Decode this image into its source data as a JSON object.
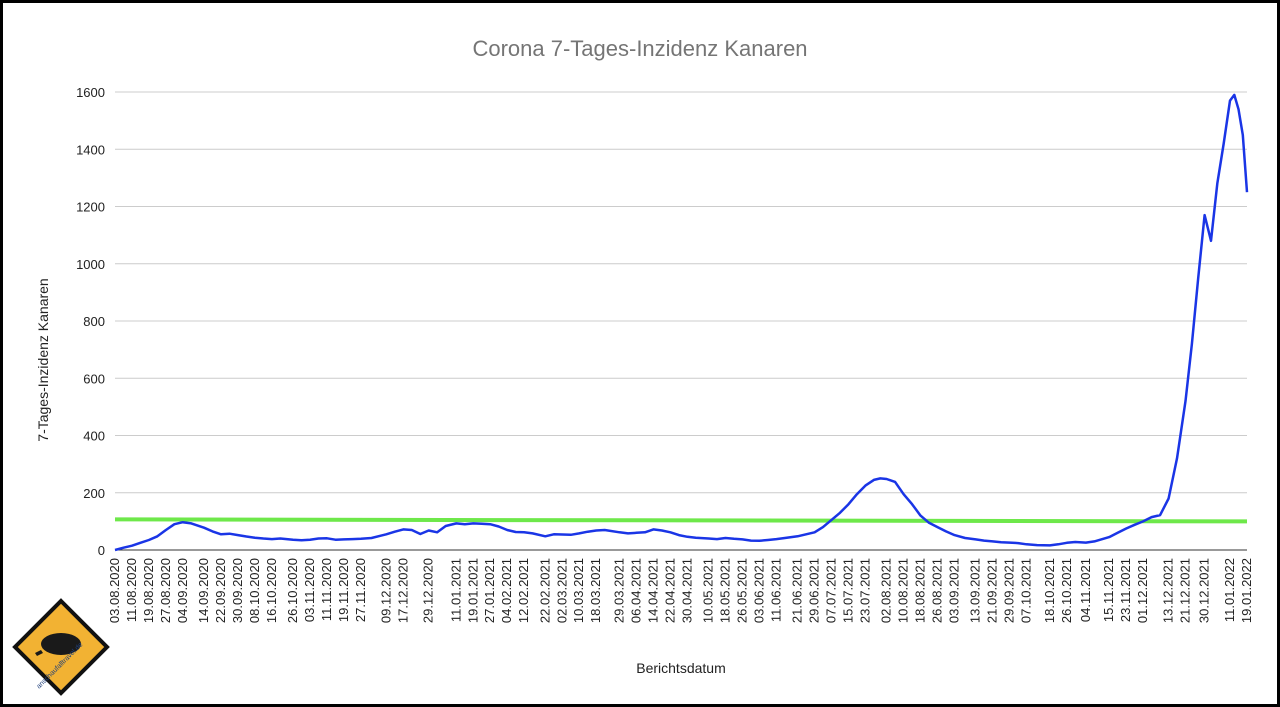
{
  "chart_data": {
    "type": "line",
    "title": "Corona 7-Tages-Inzidenz Kanaren",
    "xlabel": "Berichtsdatum",
    "ylabel": "7-Tages-Inzidenz Kanaren",
    "ylim": [
      0,
      1600
    ],
    "yticks": [
      "0",
      "200",
      "400",
      "600",
      "800",
      "1000",
      "1200",
      "1400",
      "1600"
    ],
    "grid": true,
    "colors": {
      "series": "#1a35e6",
      "threshold": "#6ee84a",
      "grid": "#cccccc",
      "title": "#757575"
    },
    "x_tick_labels": [
      "03.08.2020",
      "11.08.2020",
      "19.08.2020",
      "27.08.2020",
      "04.09.2020",
      "14.09.2020",
      "22.09.2020",
      "30.09.2020",
      "08.10.2020",
      "16.10.2020",
      "26.10.2020",
      "03.11.2020",
      "11.11.2020",
      "19.11.2020",
      "27.11.2020",
      "09.12.2020",
      "17.12.2020",
      "29.12.2020",
      "11.01.2021",
      "19.01.2021",
      "27.01.2021",
      "04.02.2021",
      "12.02.2021",
      "22.02.2021",
      "02.03.2021",
      "10.03.2021",
      "18.03.2021",
      "29.03.2021",
      "06.04.2021",
      "14.04.2021",
      "22.04.2021",
      "30.04.2021",
      "10.05.2021",
      "18.05.2021",
      "26.05.2021",
      "03.06.2021",
      "11.06.2021",
      "21.06.2021",
      "29.06.2021",
      "07.07.2021",
      "15.07.2021",
      "23.07.2021",
      "02.08.2021",
      "10.08.2021",
      "18.08.2021",
      "26.08.2021",
      "03.09.2021",
      "13.09.2021",
      "21.09.2021",
      "29.09.2021",
      "07.10.2021",
      "18.10.2021",
      "26.10.2021",
      "04.11.2021",
      "15.11.2021",
      "23.11.2021",
      "01.12.2021",
      "13.12.2021",
      "21.12.2021",
      "30.12.2021",
      "11.01.2022",
      "19.01.2022"
    ],
    "series": [
      {
        "points": [
          [
            "03.08.2020",
            0
          ],
          [
            "07.08.2020",
            8
          ],
          [
            "11.08.2020",
            15
          ],
          [
            "15.08.2020",
            25
          ],
          [
            "19.08.2020",
            35
          ],
          [
            "23.08.2020",
            48
          ],
          [
            "27.08.2020",
            70
          ],
          [
            "31.08.2020",
            90
          ],
          [
            "04.09.2020",
            97
          ],
          [
            "08.09.2020",
            93
          ],
          [
            "14.09.2020",
            78
          ],
          [
            "18.09.2020",
            65
          ],
          [
            "22.09.2020",
            55
          ],
          [
            "26.09.2020",
            57
          ],
          [
            "30.09.2020",
            52
          ],
          [
            "04.10.2020",
            47
          ],
          [
            "08.10.2020",
            43
          ],
          [
            "12.10.2020",
            40
          ],
          [
            "16.10.2020",
            38
          ],
          [
            "20.10.2020",
            40
          ],
          [
            "26.10.2020",
            36
          ],
          [
            "30.10.2020",
            34
          ],
          [
            "03.11.2020",
            36
          ],
          [
            "07.11.2020",
            40
          ],
          [
            "11.11.2020",
            41
          ],
          [
            "15.11.2020",
            36
          ],
          [
            "19.11.2020",
            37
          ],
          [
            "23.11.2020",
            38
          ],
          [
            "27.11.2020",
            39
          ],
          [
            "02.12.2020",
            42
          ],
          [
            "09.12.2020",
            55
          ],
          [
            "13.12.2020",
            64
          ],
          [
            "17.12.2020",
            72
          ],
          [
            "21.12.2020",
            70
          ],
          [
            "25.12.2020",
            56
          ],
          [
            "29.12.2020",
            68
          ],
          [
            "02.01.2021",
            62
          ],
          [
            "06.01.2021",
            84
          ],
          [
            "11.01.2021",
            93
          ],
          [
            "15.01.2021",
            90
          ],
          [
            "19.01.2021",
            93
          ],
          [
            "23.01.2021",
            92
          ],
          [
            "27.01.2021",
            90
          ],
          [
            "31.01.2021",
            82
          ],
          [
            "04.02.2021",
            70
          ],
          [
            "08.02.2021",
            63
          ],
          [
            "12.02.2021",
            62
          ],
          [
            "16.02.2021",
            58
          ],
          [
            "22.02.2021",
            48
          ],
          [
            "26.02.2021",
            55
          ],
          [
            "02.03.2021",
            54
          ],
          [
            "06.03.2021",
            53
          ],
          [
            "10.03.2021",
            58
          ],
          [
            "14.03.2021",
            64
          ],
          [
            "18.03.2021",
            68
          ],
          [
            "22.03.2021",
            70
          ],
          [
            "29.03.2021",
            62
          ],
          [
            "02.04.2021",
            58
          ],
          [
            "06.04.2021",
            60
          ],
          [
            "10.04.2021",
            62
          ],
          [
            "14.04.2021",
            72
          ],
          [
            "18.04.2021",
            68
          ],
          [
            "22.04.2021",
            62
          ],
          [
            "26.04.2021",
            52
          ],
          [
            "30.04.2021",
            46
          ],
          [
            "04.05.2021",
            43
          ],
          [
            "10.05.2021",
            40
          ],
          [
            "14.05.2021",
            38
          ],
          [
            "18.05.2021",
            42
          ],
          [
            "22.05.2021",
            39
          ],
          [
            "26.05.2021",
            37
          ],
          [
            "30.05.2021",
            33
          ],
          [
            "03.06.2021",
            32
          ],
          [
            "07.06.2021",
            35
          ],
          [
            "11.06.2021",
            38
          ],
          [
            "15.06.2021",
            42
          ],
          [
            "21.06.2021",
            48
          ],
          [
            "25.06.2021",
            55
          ],
          [
            "29.06.2021",
            62
          ],
          [
            "03.07.2021",
            80
          ],
          [
            "07.07.2021",
            105
          ],
          [
            "11.07.2021",
            130
          ],
          [
            "15.07.2021",
            160
          ],
          [
            "19.07.2021",
            195
          ],
          [
            "23.07.2021",
            225
          ],
          [
            "27.07.2021",
            245
          ],
          [
            "30.07.2021",
            250
          ],
          [
            "02.08.2021",
            248
          ],
          [
            "06.08.2021",
            238
          ],
          [
            "10.08.2021",
            195
          ],
          [
            "14.08.2021",
            160
          ],
          [
            "18.08.2021",
            120
          ],
          [
            "22.08.2021",
            95
          ],
          [
            "26.08.2021",
            80
          ],
          [
            "30.08.2021",
            65
          ],
          [
            "03.09.2021",
            52
          ],
          [
            "08.09.2021",
            42
          ],
          [
            "13.09.2021",
            37
          ],
          [
            "17.09.2021",
            33
          ],
          [
            "21.09.2021",
            30
          ],
          [
            "25.09.2021",
            27
          ],
          [
            "29.09.2021",
            26
          ],
          [
            "03.10.2021",
            24
          ],
          [
            "07.10.2021",
            20
          ],
          [
            "12.10.2021",
            17
          ],
          [
            "18.10.2021",
            16
          ],
          [
            "22.10.2021",
            20
          ],
          [
            "26.10.2021",
            25
          ],
          [
            "30.10.2021",
            28
          ],
          [
            "04.11.2021",
            26
          ],
          [
            "08.11.2021",
            30
          ],
          [
            "15.11.2021",
            45
          ],
          [
            "19.11.2021",
            60
          ],
          [
            "23.11.2021",
            75
          ],
          [
            "27.11.2021",
            88
          ],
          [
            "01.12.2021",
            100
          ],
          [
            "05.12.2021",
            115
          ],
          [
            "09.12.2021",
            122
          ],
          [
            "13.12.2021",
            180
          ],
          [
            "17.12.2021",
            320
          ],
          [
            "21.12.2021",
            520
          ],
          [
            "24.12.2021",
            720
          ],
          [
            "27.12.2021",
            950
          ],
          [
            "30.12.2021",
            1170
          ],
          [
            "02.01.2022",
            1080
          ],
          [
            "05.01.2022",
            1280
          ],
          [
            "08.01.2022",
            1420
          ],
          [
            "11.01.2022",
            1570
          ],
          [
            "13.01.2022",
            1590
          ],
          [
            "15.01.2022",
            1540
          ],
          [
            "17.01.2022",
            1450
          ],
          [
            "19.01.2022",
            1250
          ]
        ]
      }
    ],
    "threshold_line": {
      "start": [
        "03.08.2020",
        107
      ],
      "end": [
        "19.01.2022",
        100
      ]
    }
  },
  "logo": {
    "text": "anschaufalltravel.de"
  }
}
